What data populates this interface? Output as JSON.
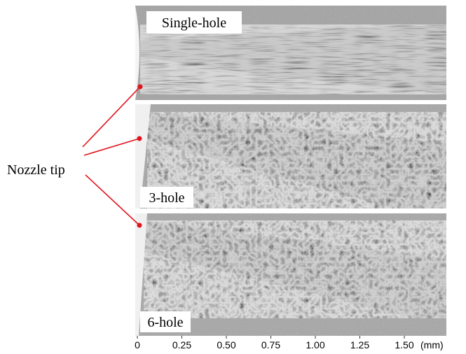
{
  "panels": [
    {
      "label": "Single-hole"
    },
    {
      "label": "3-hole"
    },
    {
      "label": "6-hole"
    }
  ],
  "annotation": "Nozzle tip",
  "axis": {
    "ticks": [
      0,
      0.25,
      {
        "value": 0.5,
        "label": "0.50"
      },
      0.75,
      {
        "value": 1,
        "label": "1.00"
      },
      1.25,
      {
        "value": 1.5,
        "label": "1.50"
      }
    ],
    "unit": "(mm)"
  }
}
